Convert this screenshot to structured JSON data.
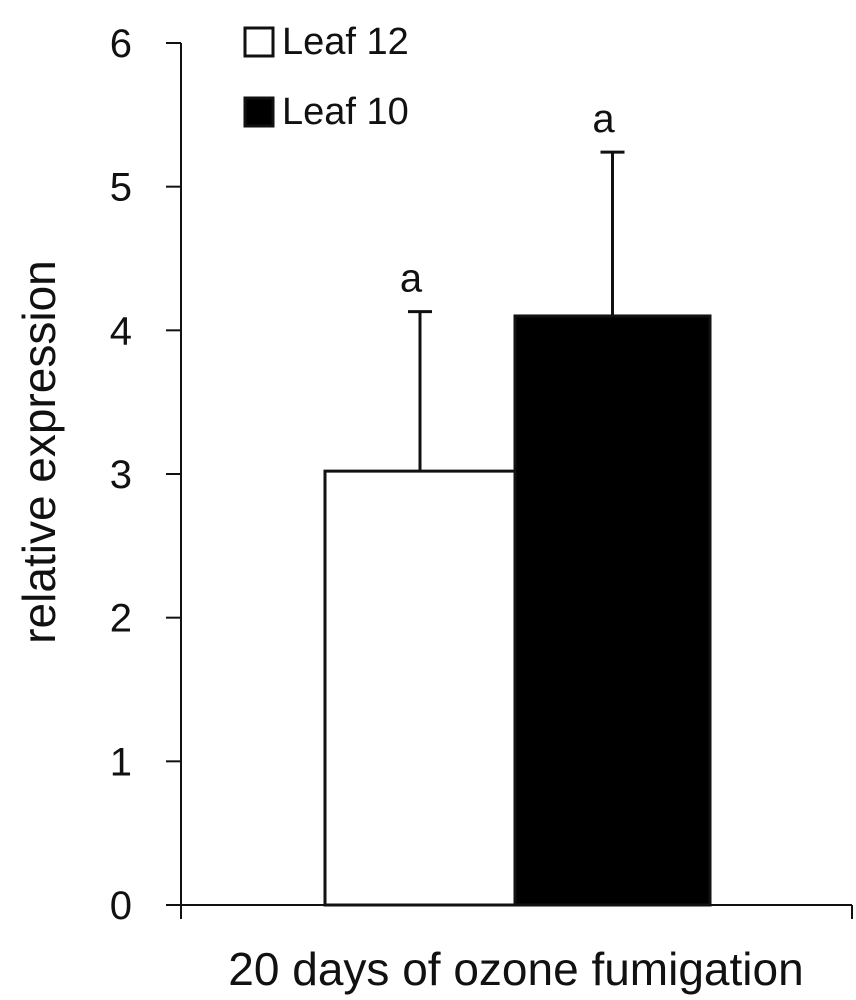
{
  "chart_data": {
    "type": "bar",
    "categories": [
      "20 days of ozone fumigation"
    ],
    "series": [
      {
        "name": "Leaf 12",
        "values": [
          3.02
        ],
        "error": [
          1.11
        ],
        "significance": [
          "a"
        ],
        "color": "#ffffff"
      },
      {
        "name": "Leaf 10",
        "values": [
          4.1
        ],
        "error": [
          1.14
        ],
        "significance": [
          "a"
        ],
        "color": "#000000"
      }
    ],
    "title": "",
    "xlabel": "20 days of ozone fumigation",
    "ylabel": "relative expression",
    "ylim": [
      0,
      6
    ],
    "yticks": [
      "0",
      "1",
      "2",
      "3",
      "4",
      "5",
      "6"
    ],
    "grid": false,
    "legend_position": "top-left"
  }
}
